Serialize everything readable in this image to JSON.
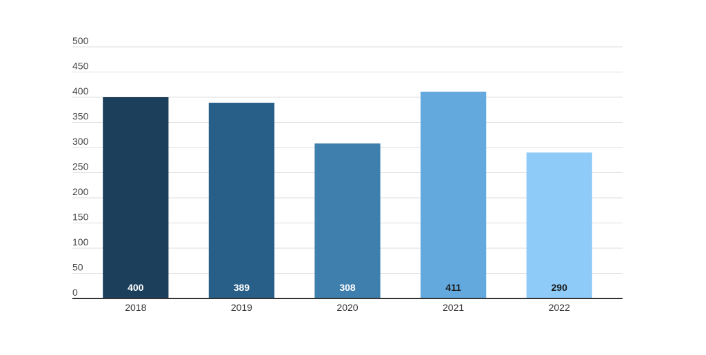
{
  "chart_data": {
    "type": "bar",
    "categories": [
      "2018",
      "2019",
      "2020",
      "2021",
      "2022"
    ],
    "values": [
      400,
      389,
      308,
      411,
      290
    ],
    "data_labels": [
      "400",
      "389",
      "308",
      "411",
      "290"
    ],
    "bar_colors": [
      "#1c3f5c",
      "#285f88",
      "#3f7fae",
      "#63a9de",
      "#8ecbf8"
    ],
    "label_colors": [
      "#ffffff",
      "#ffffff",
      "#ffffff",
      "#1a1a1a",
      "#1a1a1a"
    ],
    "yticks": [
      0,
      50,
      100,
      150,
      200,
      250,
      300,
      350,
      400,
      450,
      500
    ],
    "ylim": [
      0,
      500
    ],
    "title": "",
    "xlabel": "",
    "ylabel": "",
    "grid": true,
    "gridline_color": "#dddddd",
    "axis_color": "#333333"
  }
}
